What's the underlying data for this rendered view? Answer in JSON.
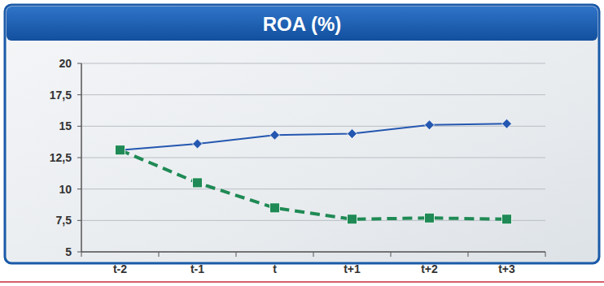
{
  "chart_data": {
    "type": "line",
    "title": "ROA (%)",
    "categories": [
      "t-2",
      "t-1",
      "t",
      "t+1",
      "t+2",
      "t+3"
    ],
    "series": [
      {
        "color": "#2457b0",
        "marker": "diamond",
        "line_style": "solid",
        "values": [
          13.1,
          13.6,
          14.3,
          14.4,
          15.1,
          15.2
        ]
      },
      {
        "color": "#1f8a55",
        "marker": "square",
        "line_style": "dashed",
        "values": [
          13.1,
          10.5,
          8.5,
          7.6,
          7.7,
          7.6
        ]
      }
    ],
    "ylim": [
      5,
      20
    ],
    "yticks": [
      5,
      {
        "value": 7.5,
        "label": "7,5"
      },
      10,
      {
        "value": 12.5,
        "label": "12,5"
      },
      15,
      {
        "value": 17.5,
        "label": "17,5"
      },
      20
    ],
    "grid": true
  }
}
